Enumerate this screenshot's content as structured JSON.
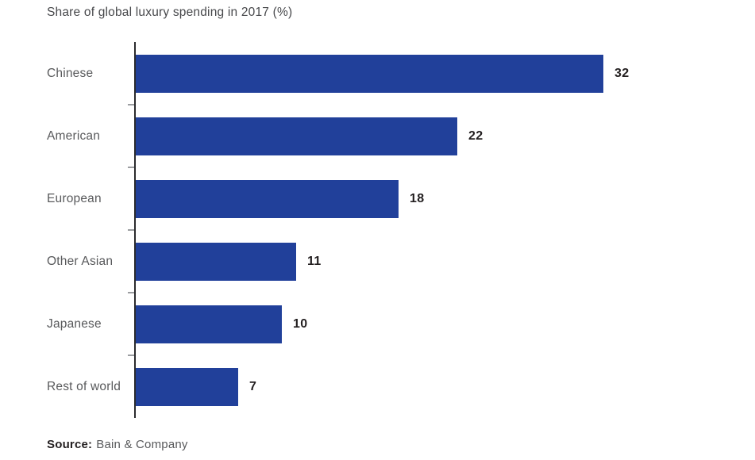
{
  "title": "Share of global luxury spending in 2017 (%)",
  "source": {
    "label": "Source:",
    "text": "Bain & Company"
  },
  "colors": {
    "bar": "#21409a",
    "axis": "#2b2b2d",
    "tick": "#9b9da0",
    "category_label": "#58595b",
    "value_label": "#231f20",
    "title": "#47484b"
  },
  "chart_data": {
    "type": "bar",
    "orientation": "horizontal",
    "title": "Share of global luxury spending in 2017 (%)",
    "categories": [
      "Chinese",
      "American",
      "European",
      "Other Asian",
      "Japanese",
      "Rest of world"
    ],
    "values": [
      32,
      22,
      18,
      11,
      10,
      7
    ],
    "xlabel": "",
    "ylabel": "",
    "xlim": [
      0,
      32
    ],
    "grid": false,
    "legend": null,
    "value_labels_shown": true,
    "source": "Bain & Company"
  }
}
